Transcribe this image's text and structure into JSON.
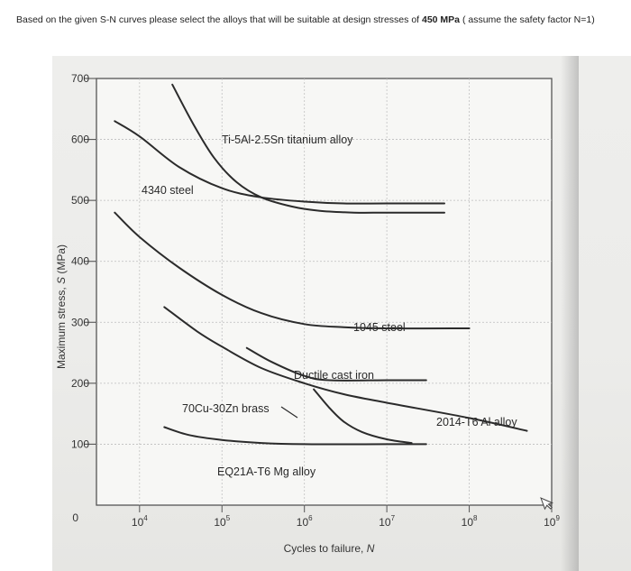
{
  "question": {
    "prefix": "Based on the given S-N curves please select the alloys that will be suitable at design stresses of ",
    "stress": "450 MPa",
    "suffix": " ( assume the safety factor N=1)"
  },
  "chart_data": {
    "type": "line",
    "title": "",
    "xlabel_prefix": "Cycles to failure, ",
    "xlabel_var": "N",
    "ylabel_prefix": "Maximum stress, ",
    "ylabel_var": "S",
    "ylabel_unit": " (MPa)",
    "x_scale": "log",
    "xlim": [
      3000,
      1000000000
    ],
    "ylim": [
      0,
      700
    ],
    "grid": true,
    "yticks": [
      0,
      100,
      200,
      300,
      400,
      500,
      600,
      700
    ],
    "xticks": [
      {
        "value": 10000,
        "base": "10",
        "exp": "4"
      },
      {
        "value": 100000,
        "base": "10",
        "exp": "5"
      },
      {
        "value": 1000000,
        "base": "10",
        "exp": "6"
      },
      {
        "value": 10000000,
        "base": "10",
        "exp": "7"
      },
      {
        "value": 100000000,
        "base": "10",
        "exp": "8"
      },
      {
        "value": 1000000000,
        "base": "10",
        "exp": "9"
      }
    ],
    "series": [
      {
        "name": "Ti-5Al-2.5Sn titanium alloy",
        "x": [
          25000,
          45000,
          80000,
          150000,
          300000,
          700000,
          1500000,
          4000000,
          10000000,
          50000000
        ],
        "y": [
          690,
          625,
          570,
          530,
          505,
          490,
          483,
          480,
          480,
          480
        ]
      },
      {
        "name": "4340 steel",
        "x": [
          5000,
          10000,
          30000,
          100000,
          300000,
          1000000,
          3000000,
          10000000,
          50000000
        ],
        "y": [
          630,
          605,
          555,
          520,
          505,
          498,
          495,
          495,
          495
        ]
      },
      {
        "name": "1045 steel",
        "x": [
          5000,
          10000,
          30000,
          100000,
          300000,
          1000000,
          3000000,
          10000000,
          100000000
        ],
        "y": [
          480,
          440,
          390,
          345,
          315,
          297,
          292,
          290,
          290
        ]
      },
      {
        "name": "Ductile cast iron",
        "x": [
          200000,
          400000,
          1000000,
          2000000,
          10000000,
          30000000
        ],
        "y": [
          258,
          235,
          212,
          205,
          205,
          205
        ]
      },
      {
        "name": "2014-T6 Al alloy",
        "x": [
          20000,
          50000,
          100000,
          300000,
          1000000,
          3000000,
          10000000,
          100000000,
          500000000
        ],
        "y": [
          325,
          285,
          260,
          225,
          200,
          182,
          168,
          143,
          122
        ]
      },
      {
        "name": "70Cu-30Zn brass",
        "x": [
          1300000,
          2000000,
          3000000,
          5000000,
          10000000,
          20000000
        ],
        "y": [
          190,
          160,
          137,
          120,
          108,
          102
        ]
      },
      {
        "name": "EQ21A-T6 Mg alloy",
        "x": [
          20000,
          40000,
          100000,
          300000,
          1000000,
          10000000,
          30000000
        ],
        "y": [
          128,
          115,
          107,
          102,
          100,
          100,
          100
        ]
      }
    ]
  }
}
